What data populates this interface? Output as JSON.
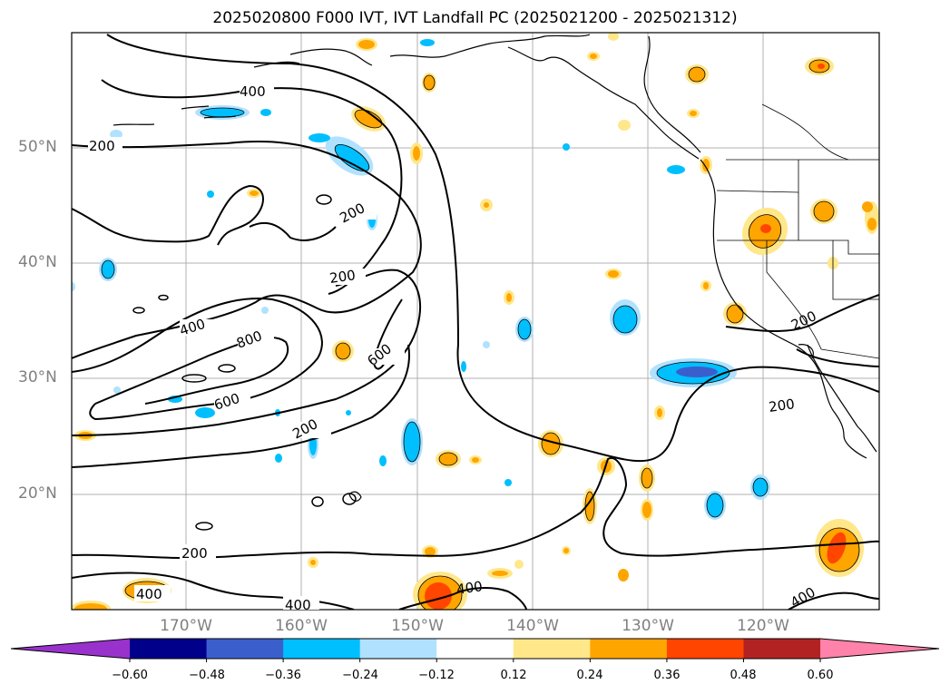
{
  "title": "2025020800 F000 IVT, IVT Landfall PC (2025021200 - 2025021312)",
  "lat_labels": [
    "50°N",
    "40°N",
    "30°N",
    "20°N"
  ],
  "lon_labels": [
    "170°W",
    "160°W",
    "150°W",
    "140°W",
    "130°W",
    "120°W"
  ],
  "contour_labels": [
    "400",
    "200",
    "200",
    "200",
    "400",
    "800",
    "600",
    "600",
    "200",
    "200",
    "200",
    "400",
    "400",
    "400",
    "200",
    "400"
  ],
  "colorbar": {
    "ticks": [
      "−0.60",
      "−0.48",
      "−0.36",
      "−0.24",
      "−0.12",
      "0.12",
      "0.24",
      "0.36",
      "0.48",
      "0.60"
    ],
    "colors": [
      "#9932cc",
      "#00008b",
      "#3a5fcd",
      "#00bfff",
      "#b0e2ff",
      "#ffffff",
      "#ffe78a",
      "#ffa500",
      "#ff4500",
      "#b22222",
      "#ff82ab"
    ]
  }
}
